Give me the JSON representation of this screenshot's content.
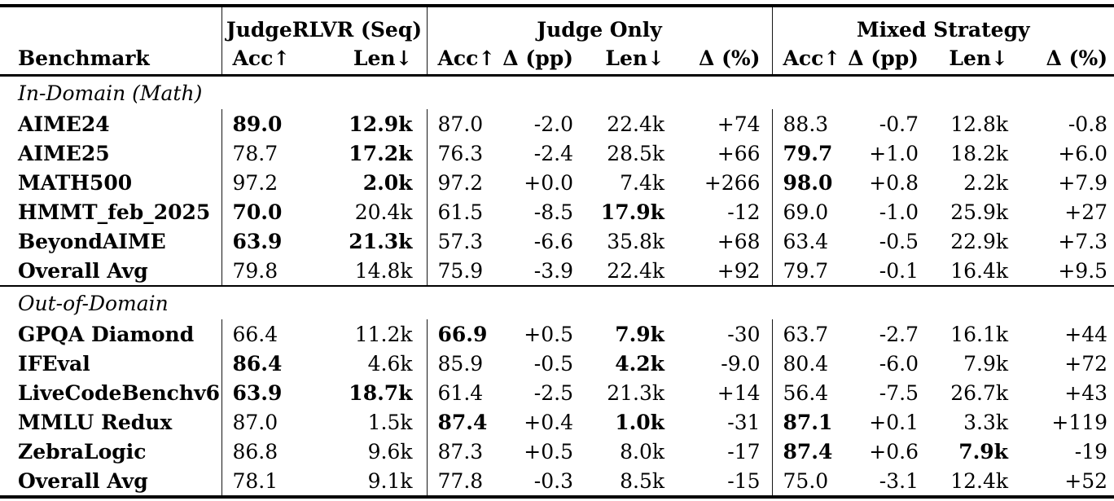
{
  "table": {
    "header": {
      "benchmark": "Benchmark",
      "groups": [
        {
          "label": "JudgeRLVR (Seq)",
          "span": 2
        },
        {
          "label": "Judge Only",
          "span": 4
        },
        {
          "label": "Mixed Strategy",
          "span": 4
        }
      ],
      "columns": [
        "Acc↑",
        "Len↓",
        "Acc↑",
        "Δ (pp)",
        "Len↓",
        "Δ (%)",
        "Acc↑",
        "Δ (pp)",
        "Len↓",
        "Δ (%)"
      ]
    },
    "sections": [
      {
        "label": "In-Domain (Math)",
        "rows": [
          {
            "name": "AIME24",
            "cells": [
              {
                "v": "89.0",
                "b": true
              },
              {
                "v": "12.9k",
                "b": true
              },
              {
                "v": "87.0"
              },
              {
                "v": "-2.0"
              },
              {
                "v": "22.4k"
              },
              {
                "v": "+74"
              },
              {
                "v": "88.3"
              },
              {
                "v": "-0.7"
              },
              {
                "v": "12.8k"
              },
              {
                "v": "-0.8"
              }
            ]
          },
          {
            "name": "AIME25",
            "cells": [
              {
                "v": "78.7"
              },
              {
                "v": "17.2k",
                "b": true
              },
              {
                "v": "76.3"
              },
              {
                "v": "-2.4"
              },
              {
                "v": "28.5k"
              },
              {
                "v": "+66"
              },
              {
                "v": "79.7",
                "b": true
              },
              {
                "v": "+1.0"
              },
              {
                "v": "18.2k"
              },
              {
                "v": "+6.0"
              }
            ]
          },
          {
            "name": "MATH500",
            "cells": [
              {
                "v": "97.2"
              },
              {
                "v": "2.0k",
                "b": true
              },
              {
                "v": "97.2"
              },
              {
                "v": "+0.0"
              },
              {
                "v": "7.4k"
              },
              {
                "v": "+266"
              },
              {
                "v": "98.0",
                "b": true
              },
              {
                "v": "+0.8"
              },
              {
                "v": "2.2k"
              },
              {
                "v": "+7.9"
              }
            ]
          },
          {
            "name": "HMMT_feb_2025",
            "cells": [
              {
                "v": "70.0",
                "b": true
              },
              {
                "v": "20.4k"
              },
              {
                "v": "61.5"
              },
              {
                "v": "-8.5"
              },
              {
                "v": "17.9k",
                "b": true
              },
              {
                "v": "-12"
              },
              {
                "v": "69.0"
              },
              {
                "v": "-1.0"
              },
              {
                "v": "25.9k"
              },
              {
                "v": "+27"
              }
            ]
          },
          {
            "name": "BeyondAIME",
            "cells": [
              {
                "v": "63.9",
                "b": true
              },
              {
                "v": "21.3k",
                "b": true
              },
              {
                "v": "57.3"
              },
              {
                "v": "-6.6"
              },
              {
                "v": "35.8k"
              },
              {
                "v": "+68"
              },
              {
                "v": "63.4"
              },
              {
                "v": "-0.5"
              },
              {
                "v": "22.9k"
              },
              {
                "v": "+7.3"
              }
            ]
          },
          {
            "name": "Overall Avg",
            "cells": [
              {
                "v": "79.8"
              },
              {
                "v": "14.8k"
              },
              {
                "v": "75.9"
              },
              {
                "v": "-3.9"
              },
              {
                "v": "22.4k"
              },
              {
                "v": "+92"
              },
              {
                "v": "79.7"
              },
              {
                "v": "-0.1"
              },
              {
                "v": "16.4k"
              },
              {
                "v": "+9.5"
              }
            ]
          }
        ]
      },
      {
        "label": "Out-of-Domain",
        "rows": [
          {
            "name": "GPQA Diamond",
            "cells": [
              {
                "v": "66.4"
              },
              {
                "v": "11.2k"
              },
              {
                "v": "66.9",
                "b": true
              },
              {
                "v": "+0.5"
              },
              {
                "v": "7.9k",
                "b": true
              },
              {
                "v": "-30"
              },
              {
                "v": "63.7"
              },
              {
                "v": "-2.7"
              },
              {
                "v": "16.1k"
              },
              {
                "v": "+44"
              }
            ]
          },
          {
            "name": "IFEval",
            "cells": [
              {
                "v": "86.4",
                "b": true
              },
              {
                "v": "4.6k"
              },
              {
                "v": "85.9"
              },
              {
                "v": "-0.5"
              },
              {
                "v": "4.2k",
                "b": true
              },
              {
                "v": "-9.0"
              },
              {
                "v": "80.4"
              },
              {
                "v": "-6.0"
              },
              {
                "v": "7.9k"
              },
              {
                "v": "+72"
              }
            ]
          },
          {
            "name": "LiveCodeBenchv6",
            "cells": [
              {
                "v": "63.9",
                "b": true
              },
              {
                "v": "18.7k",
                "b": true
              },
              {
                "v": "61.4"
              },
              {
                "v": "-2.5"
              },
              {
                "v": "21.3k"
              },
              {
                "v": "+14"
              },
              {
                "v": "56.4"
              },
              {
                "v": "-7.5"
              },
              {
                "v": "26.7k"
              },
              {
                "v": "+43"
              }
            ]
          },
          {
            "name": "MMLU Redux",
            "cells": [
              {
                "v": "87.0"
              },
              {
                "v": "1.5k"
              },
              {
                "v": "87.4",
                "b": true
              },
              {
                "v": "+0.4"
              },
              {
                "v": "1.0k",
                "b": true
              },
              {
                "v": "-31"
              },
              {
                "v": "87.1",
                "b": true
              },
              {
                "v": "+0.1"
              },
              {
                "v": "3.3k"
              },
              {
                "v": "+119"
              }
            ]
          },
          {
            "name": "ZebraLogic",
            "cells": [
              {
                "v": "86.8"
              },
              {
                "v": "9.6k"
              },
              {
                "v": "87.3"
              },
              {
                "v": "+0.5"
              },
              {
                "v": "8.0k"
              },
              {
                "v": "-17"
              },
              {
                "v": "87.4",
                "b": true
              },
              {
                "v": "+0.6"
              },
              {
                "v": "7.9k",
                "b": true
              },
              {
                "v": "-19"
              }
            ]
          },
          {
            "name": "Overall Avg",
            "cells": [
              {
                "v": "78.1"
              },
              {
                "v": "9.1k"
              },
              {
                "v": "77.8"
              },
              {
                "v": "-0.3"
              },
              {
                "v": "8.5k"
              },
              {
                "v": "-15"
              },
              {
                "v": "75.0"
              },
              {
                "v": "-3.1"
              },
              {
                "v": "12.4k"
              },
              {
                "v": "+52"
              }
            ]
          }
        ]
      }
    ]
  }
}
